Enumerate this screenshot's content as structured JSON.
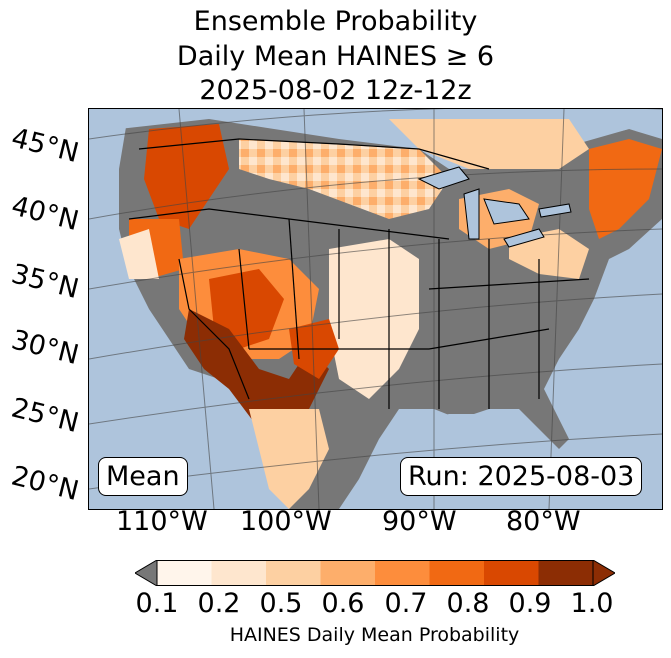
{
  "title": {
    "line1": "Ensemble Probability",
    "line2": "Daily Mean HAINES ≥ 6",
    "line3": "2025-08-02 12z-12z"
  },
  "map": {
    "lat_labels": [
      "45°N",
      "40°N",
      "35°N",
      "30°N",
      "25°N",
      "20°N"
    ],
    "lon_labels": [
      "110°W",
      "100°W",
      "90°W",
      "80°W"
    ],
    "left_box": "Mean",
    "right_box": "Run: 2025-08-03",
    "colors": {
      "ocean": "#aec4dc",
      "land_no_data": "#777777",
      "borders": "#000000"
    },
    "regions": [
      {
        "name": "southwest",
        "probability": 1.0
      },
      {
        "name": "pacific-northwest",
        "probability": 0.9
      },
      {
        "name": "northern-plains",
        "probability": 0.5
      },
      {
        "name": "great-lakes",
        "probability": 0.6
      },
      {
        "name": "new-england",
        "probability": 0.8
      },
      {
        "name": "southeast",
        "probability": 0.0
      }
    ]
  },
  "colorbar": {
    "ticks": [
      "0.1",
      "0.2",
      "0.5",
      "0.6",
      "0.7",
      "0.8",
      "0.9",
      "1.0"
    ],
    "colors": [
      "#fff5eb",
      "#fee6ce",
      "#fdd0a2",
      "#fdae6b",
      "#fd8d3c",
      "#f16913",
      "#d94801",
      "#8c2d04"
    ],
    "under_color": "#777777",
    "label": "HAINES Daily Mean Probability"
  }
}
